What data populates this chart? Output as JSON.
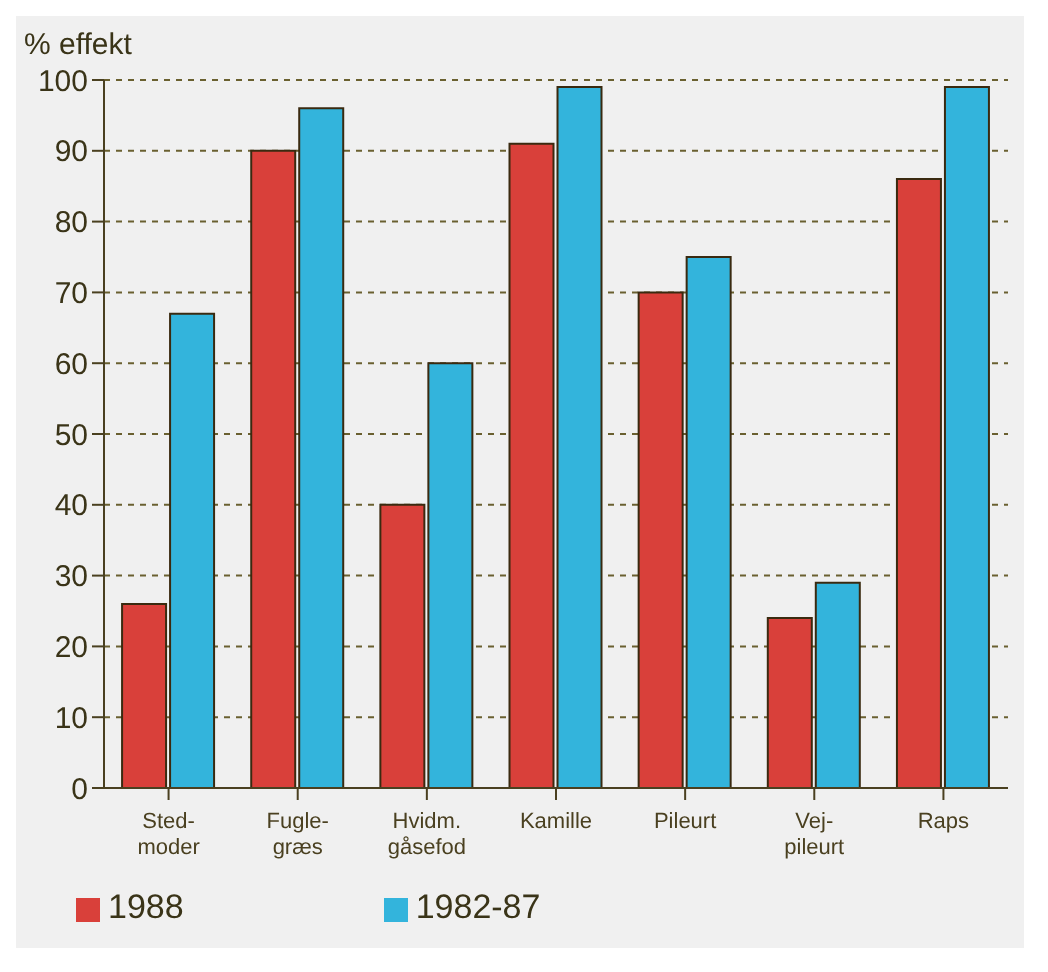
{
  "chart_data": {
    "type": "bar",
    "ylabel": "% effekt",
    "categories": [
      "Sted-\nmoder",
      "Fugle-\ngræs",
      "Hvidm.\ngåsefod",
      "Kamille",
      "Pileurt",
      "Vej-\npileurt",
      "Raps"
    ],
    "series": [
      {
        "name": "1988",
        "color": "#d9403a",
        "values": [
          26,
          90,
          40,
          91,
          70,
          24,
          86
        ]
      },
      {
        "name": "1982-87",
        "color": "#33b4dc",
        "values": [
          67,
          96,
          60,
          99,
          75,
          29,
          99
        ]
      }
    ],
    "ylim": [
      0,
      100
    ],
    "yticks": [
      0,
      10,
      20,
      30,
      40,
      50,
      60,
      70,
      80,
      90,
      100
    ],
    "grid": "y",
    "legend": "bottom left"
  }
}
